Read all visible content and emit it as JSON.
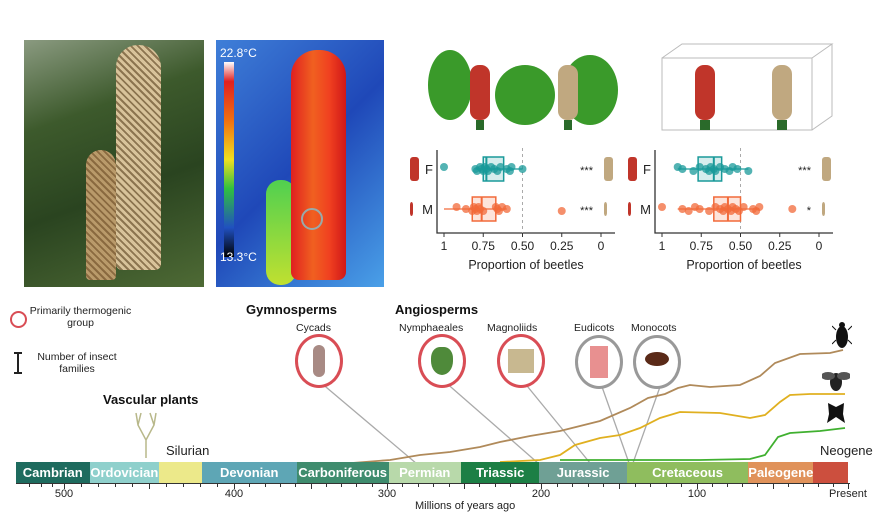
{
  "thermal": {
    "max_label": "22.8°C",
    "min_label": "13.3°C"
  },
  "legend": {
    "thermogenic": "Primarily thermogenic group",
    "insects": "Number of insect families"
  },
  "groups": {
    "vascular": "Vascular plants",
    "gymnosperms": "Gymnosperms",
    "angiosperms": "Angiosperms",
    "cycads": "Cycads",
    "nymphaeales": "Nymphaeales",
    "magnoliids": "Magnoliids",
    "eudicots": "Eudicots",
    "monocots": "Monocots"
  },
  "timeline": {
    "xlabel": "Millions of years ago",
    "ticks": [
      {
        "v": 500,
        "label": "500"
      },
      {
        "v": 400,
        "label": "400"
      },
      {
        "v": 300,
        "label": "300"
      },
      {
        "v": 200,
        "label": "200"
      },
      {
        "v": 100,
        "label": "100"
      },
      {
        "v": 0,
        "label": "Present"
      }
    ],
    "periods": [
      {
        "name": "Cambrian",
        "start": 541,
        "end": 485,
        "color": "#1e6b5e"
      },
      {
        "name": "Ordovician",
        "start": 485,
        "end": 444,
        "color": "#8fd0cc"
      },
      {
        "name": "Silurian",
        "start": 444,
        "end": 419,
        "color": "#ece98a"
      },
      {
        "name": "Devonian",
        "start": 419,
        "end": 359,
        "color": "#5ea6b5"
      },
      {
        "name": "Carboniferous",
        "start": 359,
        "end": 299,
        "color": "#3f8c6e"
      },
      {
        "name": "Permian",
        "start": 299,
        "end": 252,
        "color": "#b8d9aa"
      },
      {
        "name": "Triassic",
        "start": 252,
        "end": 201,
        "color": "#1c7f45"
      },
      {
        "name": "Jurassic",
        "start": 201,
        "end": 145,
        "color": "#6fa095"
      },
      {
        "name": "Cretaceous",
        "start": 145,
        "end": 66,
        "color": "#8fbd5e"
      },
      {
        "name": "Paleogene",
        "start": 66,
        "end": 23,
        "color": "#e0925a"
      },
      {
        "name": "Neogene",
        "start": 23,
        "end": 0,
        "color": "#cc4f3e"
      }
    ]
  },
  "insect_icons": [
    "beetle-icon",
    "bee-icon",
    "butterfly-icon"
  ],
  "chart_data": [
    {
      "type": "box",
      "xlabel": "Proportion of beetles",
      "xlim": [
        1,
        0
      ],
      "ticks": [
        "1",
        "0.75",
        "0.50",
        "0.25",
        "0"
      ],
      "reference": 0.5,
      "series": [
        {
          "name": "F",
          "color": "#1a9a9a",
          "q1": 0.62,
          "median": 0.73,
          "q3": 0.75,
          "whisker": [
            0.5,
            0.8
          ],
          "points": [
            1,
            0.8,
            0.79,
            0.77,
            0.76,
            0.75,
            0.74,
            0.73,
            0.72,
            0.7,
            0.68,
            0.66,
            0.64,
            0.6,
            0.58,
            0.57,
            0.5
          ],
          "signif": "***"
        },
        {
          "name": "M",
          "color": "#f26a3a",
          "q1": 0.67,
          "median": 0.76,
          "q3": 0.82,
          "whisker": [
            0.6,
            1
          ],
          "points": [
            0.92,
            0.86,
            0.82,
            0.81,
            0.8,
            0.79,
            0.78,
            0.77,
            0.75,
            0.67,
            0.66,
            0.65,
            0.63,
            0.6,
            0.25
          ],
          "signif": "***"
        }
      ]
    },
    {
      "type": "box",
      "xlabel": "Proportion of beetles",
      "xlim": [
        1,
        0
      ],
      "ticks": [
        "1",
        "0.75",
        "0.50",
        "0.25",
        "0"
      ],
      "reference": 0.5,
      "series": [
        {
          "name": "F",
          "color": "#1a9a9a",
          "q1": 0.62,
          "median": 0.67,
          "q3": 0.77,
          "whisker": [
            0.45,
            0.9
          ],
          "points": [
            0.9,
            0.87,
            0.8,
            0.76,
            0.72,
            0.7,
            0.69,
            0.67,
            0.66,
            0.63,
            0.6,
            0.57,
            0.55,
            0.52,
            0.45
          ],
          "signif": "***"
        },
        {
          "name": "M",
          "color": "#f26a3a",
          "q1": 0.5,
          "median": 0.58,
          "q3": 0.67,
          "whisker": [
            0.38,
            0.9
          ],
          "points": [
            1,
            0.87,
            0.83,
            0.79,
            0.76,
            0.7,
            0.66,
            0.63,
            0.61,
            0.6,
            0.58,
            0.56,
            0.55,
            0.53,
            0.51,
            0.48,
            0.42,
            0.4,
            0.38,
            0.17
          ],
          "signif": "*"
        }
      ]
    }
  ]
}
